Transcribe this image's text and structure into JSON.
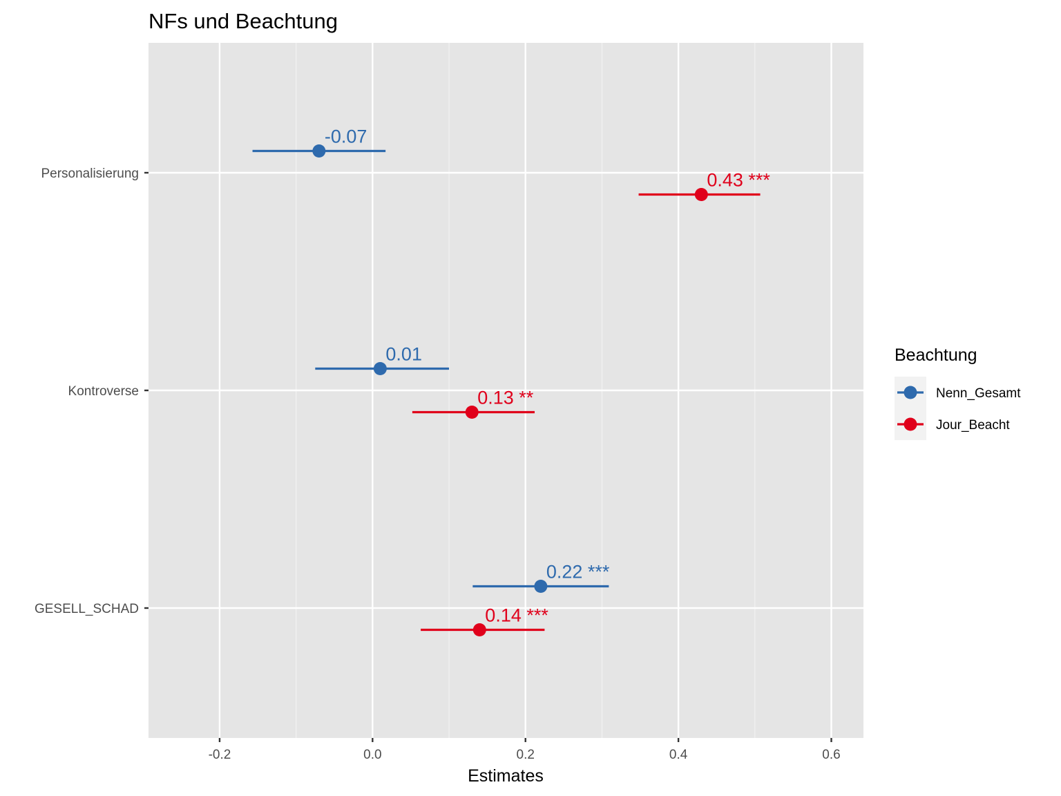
{
  "chart_data": {
    "type": "scatter",
    "title": "NFs und Beachtung",
    "xlabel": "Estimates",
    "ylabel": "",
    "xlim": [
      -0.293,
      0.642
    ],
    "xticks": [
      -0.2,
      0.0,
      0.2,
      0.4,
      0.6
    ],
    "xtick_labels": [
      "-0.2",
      "0.0",
      "0.2",
      "0.4",
      "0.6"
    ],
    "categories": [
      "Personalisierung",
      "Kontroverse",
      "GESELL_SCHAD"
    ],
    "grid": true,
    "legend": {
      "title": "Beachtung",
      "position": "right"
    },
    "series": [
      {
        "name": "Nenn_Gesamt",
        "color": "#2E6AAD",
        "estimates": [
          -0.07,
          0.01,
          0.22
        ],
        "ci_low": [
          -0.157,
          -0.075,
          0.131
        ],
        "ci_high": [
          0.017,
          0.1,
          0.309
        ],
        "labels": [
          "-0.07",
          "0.01",
          "0.22 ***"
        ]
      },
      {
        "name": "Jour_Beacht",
        "color": "#E0001B",
        "estimates": [
          0.43,
          0.13,
          0.14
        ],
        "ci_low": [
          0.348,
          0.052,
          0.063
        ],
        "ci_high": [
          0.507,
          0.212,
          0.225
        ],
        "labels": [
          "0.43 ***",
          "0.13 **",
          "0.14 ***"
        ]
      }
    ]
  }
}
